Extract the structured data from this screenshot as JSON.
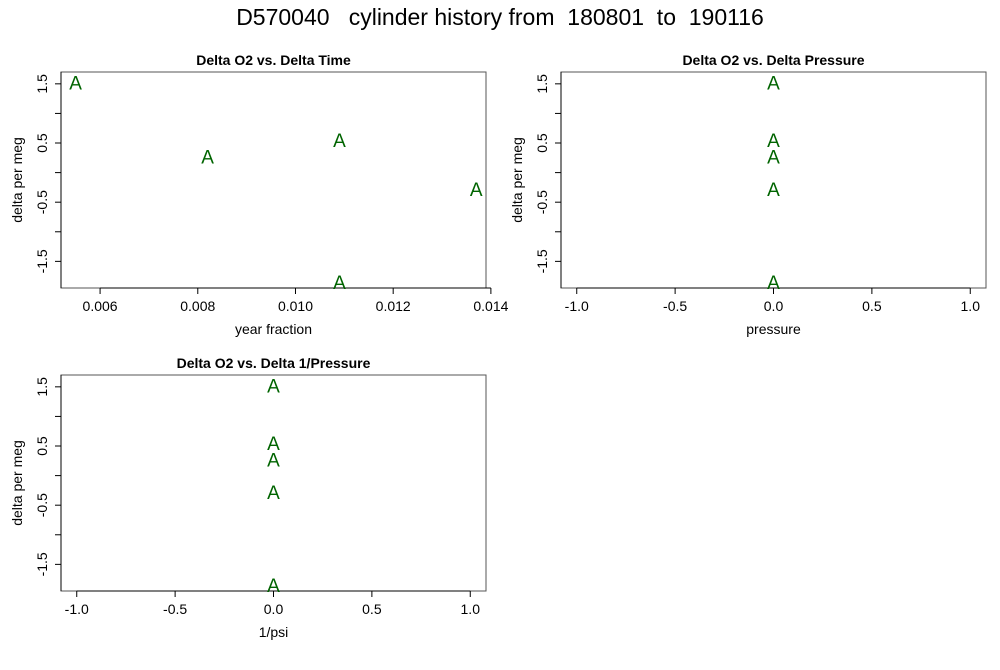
{
  "title": "D570040   cylinder history from  180801  to  190116",
  "mark_symbol": "A",
  "mark_color": "#006400",
  "chart_data": [
    {
      "type": "scatter",
      "title": "Delta O2 vs. Delta Time",
      "xlabel": "year fraction",
      "ylabel": "delta per meg",
      "xlim": [
        0.0052,
        0.0139
      ],
      "ylim": [
        -1.95,
        1.7
      ],
      "xticks": [
        0.006,
        0.008,
        0.01,
        0.012,
        0.014
      ],
      "xtick_labels": [
        "0.006",
        "0.008",
        "0.010",
        "0.012",
        "0.014"
      ],
      "yticks": [
        -1.5,
        -0.5,
        0.5,
        1.5
      ],
      "ytick_labels": [
        "-1.5",
        "-0.5",
        "0.5",
        "1.5"
      ],
      "yticks_minor": [
        -1.0,
        0.0,
        1.0
      ],
      "grid": false,
      "series": [
        {
          "x": [
            0.0055,
            0.0082,
            0.0109,
            0.0137,
            0.0109
          ],
          "y": [
            1.52,
            0.27,
            0.55,
            -0.28,
            -1.85
          ]
        }
      ]
    },
    {
      "type": "scatter",
      "title": "Delta O2 vs. Delta Pressure",
      "xlabel": "pressure",
      "ylabel": "delta per meg",
      "xlim": [
        -1.08,
        1.08
      ],
      "ylim": [
        -1.95,
        1.7
      ],
      "xticks": [
        -1.0,
        -0.5,
        0.0,
        0.5,
        1.0
      ],
      "xtick_labels": [
        "-1.0",
        "-0.5",
        "0.0",
        "0.5",
        "1.0"
      ],
      "yticks": [
        -1.5,
        -0.5,
        0.5,
        1.5
      ],
      "ytick_labels": [
        "-1.5",
        "-0.5",
        "0.5",
        "1.5"
      ],
      "yticks_minor": [
        -1.0,
        0.0,
        1.0
      ],
      "grid": false,
      "series": [
        {
          "x": [
            0,
            0,
            0,
            0,
            0
          ],
          "y": [
            1.52,
            0.55,
            0.27,
            -0.28,
            -1.85
          ]
        }
      ]
    },
    {
      "type": "scatter",
      "title": "Delta O2 vs. Delta 1/Pressure",
      "xlabel": "1/psi",
      "ylabel": "delta per meg",
      "xlim": [
        -1.08,
        1.08
      ],
      "ylim": [
        -1.95,
        1.7
      ],
      "xticks": [
        -1.0,
        -0.5,
        0.0,
        0.5,
        1.0
      ],
      "xtick_labels": [
        "-1.0",
        "-0.5",
        "0.0",
        "0.5",
        "1.0"
      ],
      "yticks": [
        -1.5,
        -0.5,
        0.5,
        1.5
      ],
      "ytick_labels": [
        "-1.5",
        "-0.5",
        "0.5",
        "1.5"
      ],
      "yticks_minor": [
        -1.0,
        0.0,
        1.0
      ],
      "grid": false,
      "series": [
        {
          "x": [
            0,
            0,
            0,
            0,
            0
          ],
          "y": [
            1.52,
            0.55,
            0.27,
            -0.28,
            -1.85
          ]
        }
      ]
    }
  ]
}
